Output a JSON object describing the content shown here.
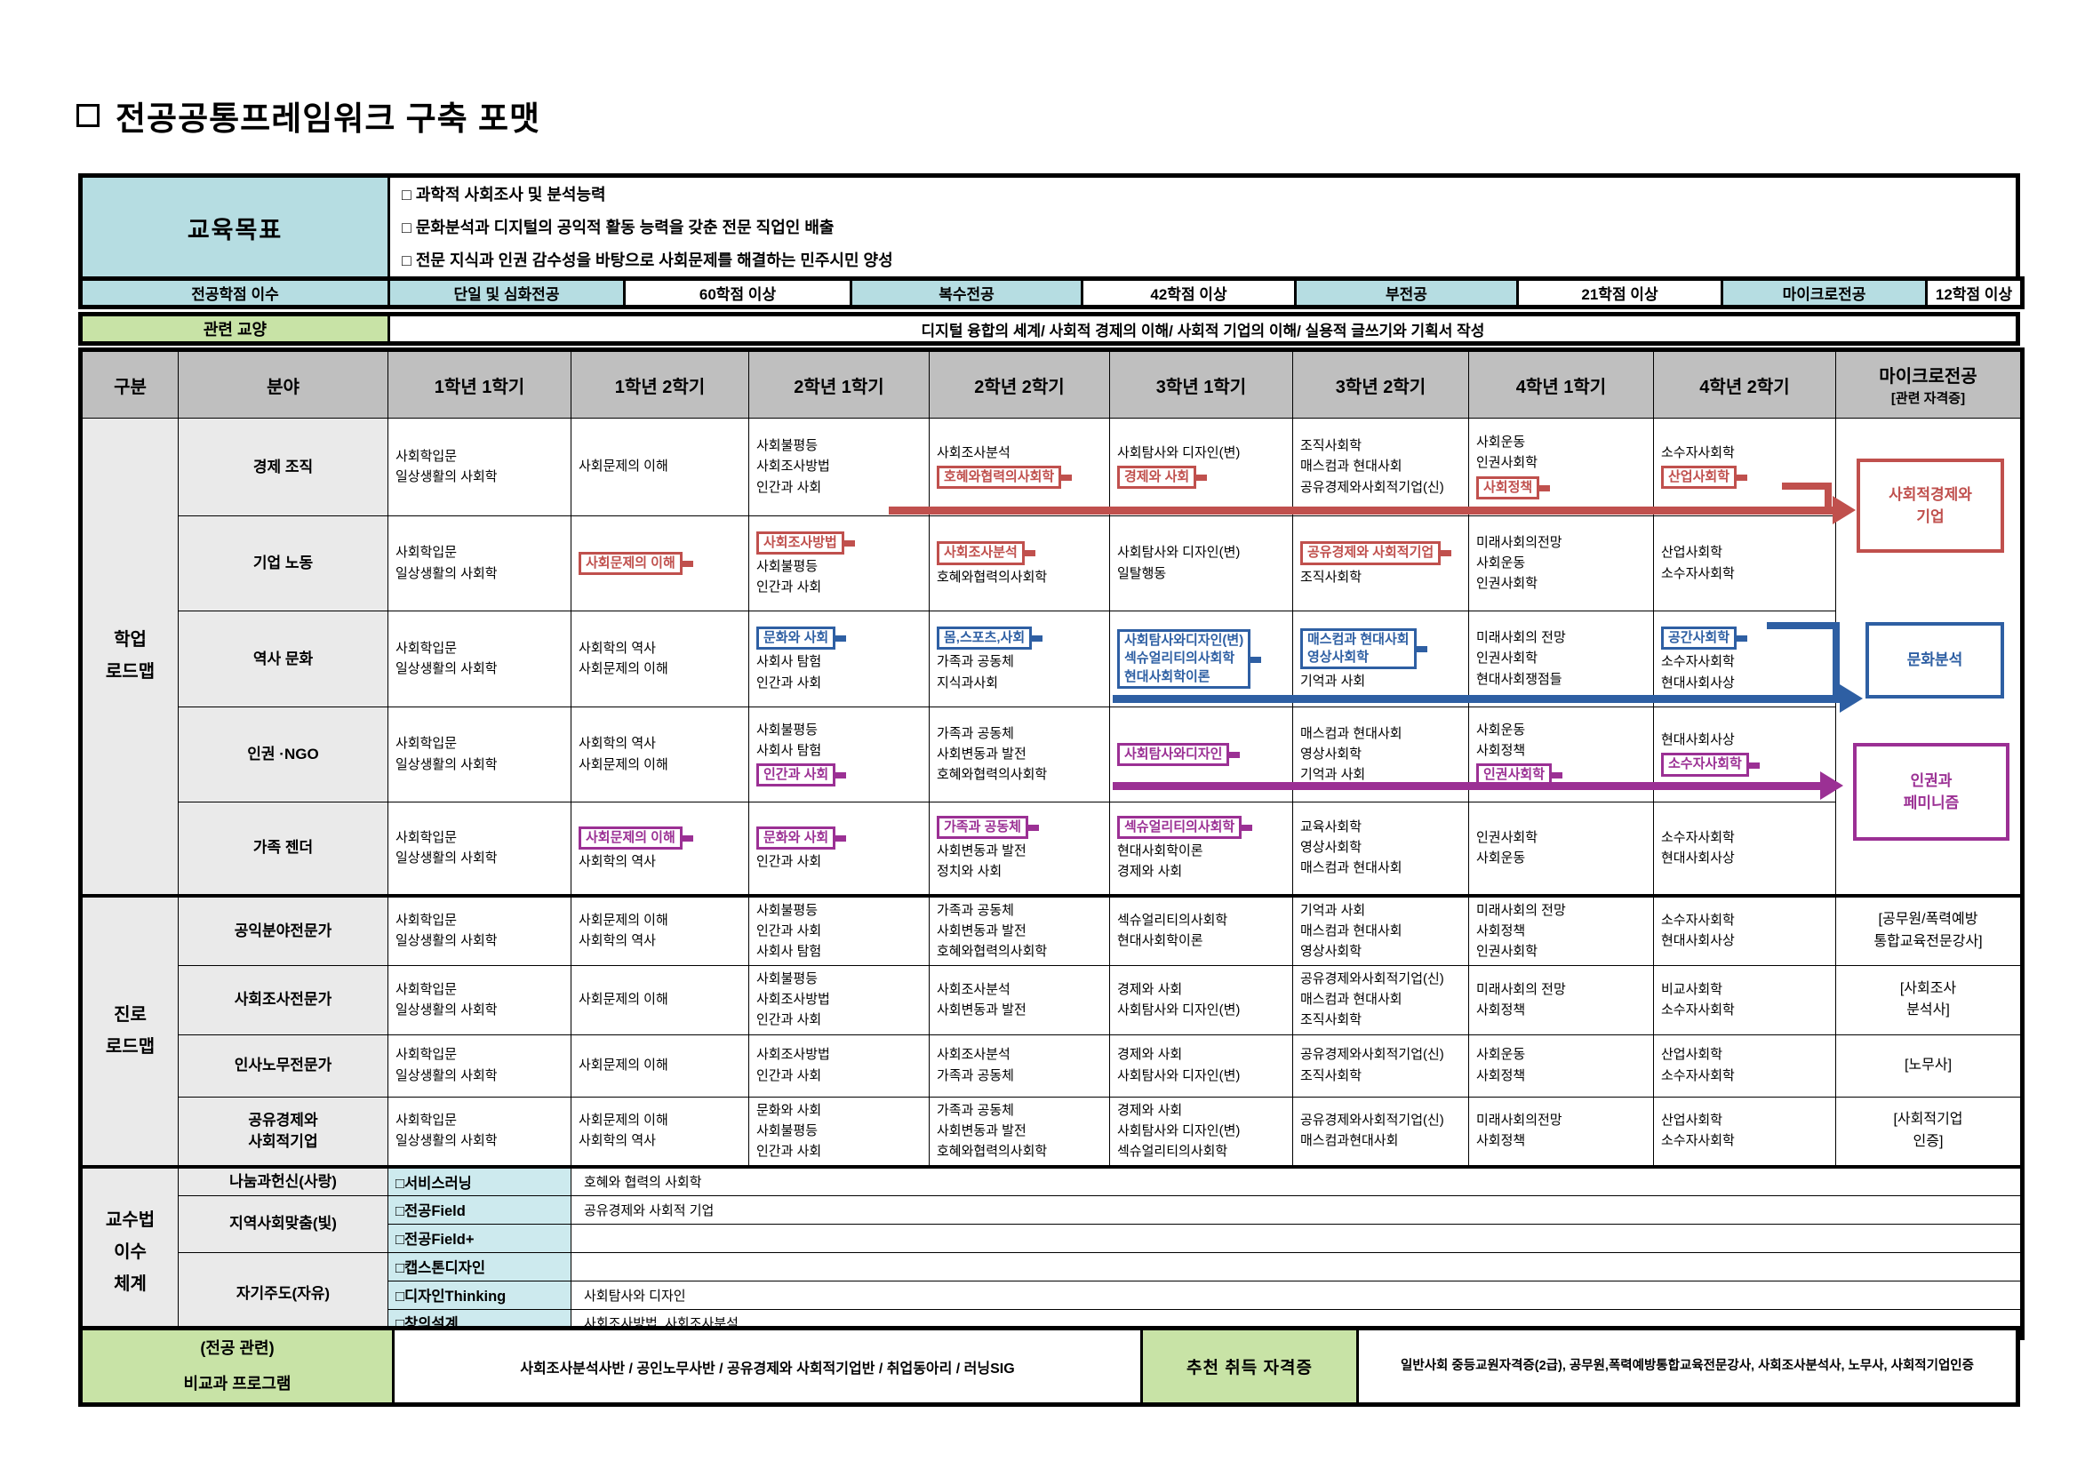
{
  "title": "전공공통프레임워크 구축 포맷",
  "colors": {
    "red": "#C0504D",
    "blue": "#2E5FA3",
    "purple": "#9B3094",
    "cyan": "#B6DDE2",
    "light_cyan": "#CDEAEE",
    "green": "#C8E3A6",
    "header_gray": "#BFBFBF",
    "label_gray": "#EAEAEA"
  },
  "goals": {
    "label": "교육목표",
    "items": [
      "□ 과학적 사회조사 및 분석능력",
      "□ 문화분석과 디지털의 공익적 활동 능력을 갖춘 전문 직업인 배출",
      "□ 전문 지식과 인권 감수성을 바탕으로 사회문제를 해결하는 민주시민 양성"
    ]
  },
  "credits": {
    "label": "전공학점 이수",
    "pairs": [
      {
        "type": "단일 및 심화전공",
        "credit": "60학점 이상"
      },
      {
        "type": "복수전공",
        "credit": "42학점 이상"
      },
      {
        "type": "부전공",
        "credit": "21학점 이상"
      },
      {
        "type": "마이크로전공",
        "credit": "12학점 이상"
      }
    ]
  },
  "liberal_arts": {
    "label": "관련 교양",
    "value": "디지털 융합의 세계/ 사회적 경제의 이해/ 사회적 기업의 이해/ 실용적 글쓰기와 기획서 작성"
  },
  "grid": {
    "headers": [
      "구분",
      "분야",
      "1학년 1학기",
      "1학년 2학기",
      "2학년 1학기",
      "2학년 2학기",
      "3학년 1학기",
      "3학년 2학기",
      "4학년 1학기",
      "4학년 2학기"
    ],
    "micro_header": {
      "line1": "마이크로전공",
      "line2": "[관련 자격증]"
    },
    "academic": {
      "group_label": [
        "학업",
        "로드맵"
      ],
      "rows": [
        {
          "field": "경제 조직",
          "cells": [
            [
              {
                "t": "사회학입문"
              },
              {
                "t": "일상생활의 사회학"
              }
            ],
            [
              {
                "t": "사회문제의 이해"
              }
            ],
            [
              {
                "t": "사회불평등"
              },
              {
                "t": "사회조사방법"
              },
              {
                "t": "인간과 사회"
              }
            ],
            [
              {
                "t": "사회조사분석"
              },
              {
                "t": "호혜와협력의사회학",
                "b": "red"
              }
            ],
            [
              {
                "t": "사회탐사와 디자인(변)"
              },
              {
                "t": "경제와 사회",
                "b": "red"
              }
            ],
            [
              {
                "t": "조직사회학"
              },
              {
                "t": "매스컴과 현대사회"
              },
              {
                "t": "공유경제와사회적기업(신)"
              }
            ],
            [
              {
                "t": "사회운동"
              },
              {
                "t": "인권사회학"
              },
              {
                "t": "사회정책",
                "b": "red"
              }
            ],
            [
              {
                "t": "소수자사회학"
              },
              {
                "t": "산업사회학",
                "b": "red"
              }
            ]
          ]
        },
        {
          "field": "기업 노동",
          "cells": [
            [
              {
                "t": "사회학입문"
              },
              {
                "t": "일상생활의 사회학"
              }
            ],
            [
              {
                "t": "사회문제의 이해",
                "b": "red"
              }
            ],
            [
              {
                "t": "사회조사방법",
                "b": "red"
              },
              {
                "t": "사회불평등"
              },
              {
                "t": "인간과 사회"
              }
            ],
            [
              {
                "t": "사회조사분석",
                "b": "red"
              },
              {
                "t": "호혜와협력의사회학"
              }
            ],
            [
              {
                "t": "사회탐사와 디자인(변)"
              },
              {
                "t": "일탈행동"
              }
            ],
            [
              {
                "t": "공유경제와 사회적기업",
                "b": "red"
              },
              {
                "t": "조직사회학"
              }
            ],
            [
              {
                "t": "미래사회의전망"
              },
              {
                "t": "사회운동"
              },
              {
                "t": "인권사회학"
              }
            ],
            [
              {
                "t": "산업사회학"
              },
              {
                "t": "소수자사회학"
              }
            ]
          ]
        },
        {
          "field": "역사 문화",
          "cells": [
            [
              {
                "t": "사회학입문"
              },
              {
                "t": "일상생활의 사회학"
              }
            ],
            [
              {
                "t": "사회학의 역사"
              },
              {
                "t": "사회문제의 이해"
              }
            ],
            [
              {
                "t": "문화와 사회",
                "b": "blue"
              },
              {
                "t": "사회사 탐험"
              },
              {
                "t": "인간과 사회"
              }
            ],
            [
              {
                "t": "몸,스포츠,사회",
                "b": "blue"
              },
              {
                "t": "가족과 공동체"
              },
              {
                "t": "지식과사회"
              }
            ],
            [
              {
                "t": [
                  "사회탐사와디자인(변)",
                  "섹슈얼리티의사회학",
                  "현대사회학이론"
                ],
                "b": "blue"
              }
            ],
            [
              {
                "t": [
                  "매스컴과 현대사회",
                  "영상사회학"
                ],
                "b": "blue"
              },
              {
                "t": "기억과 사회"
              }
            ],
            [
              {
                "t": "미래사회의 전망"
              },
              {
                "t": "인권사회학"
              },
              {
                "t": "현대사회쟁점들"
              }
            ],
            [
              {
                "t": "공간사회학",
                "b": "blue"
              },
              {
                "t": "소수자사회학"
              },
              {
                "t": "현대사회사상"
              }
            ]
          ]
        },
        {
          "field": "인권 ·NGO",
          "cells": [
            [
              {
                "t": "사회학입문"
              },
              {
                "t": "일상생활의 사회학"
              }
            ],
            [
              {
                "t": "사회학의 역사"
              },
              {
                "t": "사회문제의 이해"
              }
            ],
            [
              {
                "t": "사회불평등"
              },
              {
                "t": "사회사 탐험"
              },
              {
                "t": "인간과 사회",
                "b": "purple"
              }
            ],
            [
              {
                "t": "가족과 공동체"
              },
              {
                "t": "사회변동과 발전"
              },
              {
                "t": "호혜와협력의사회학"
              }
            ],
            [
              {
                "t": "사회탐사와디자인",
                "b": "purple"
              }
            ],
            [
              {
                "t": "매스컴과 현대사회"
              },
              {
                "t": "영상사회학"
              },
              {
                "t": "기억과 사회"
              }
            ],
            [
              {
                "t": "사회운동"
              },
              {
                "t": "사회정책"
              },
              {
                "t": "인권사회학",
                "b": "purple"
              }
            ],
            [
              {
                "t": "현대사회사상"
              },
              {
                "t": "소수자사회학",
                "b": "purple"
              }
            ]
          ]
        },
        {
          "field": "가족 젠더",
          "cells": [
            [
              {
                "t": "사회학입문"
              },
              {
                "t": "일상생활의 사회학"
              }
            ],
            [
              {
                "t": "사회문제의 이해",
                "b": "purple"
              },
              {
                "t": "사회학의 역사"
              }
            ],
            [
              {
                "t": "문화와 사회",
                "b": "purple"
              },
              {
                "t": "인간과 사회"
              }
            ],
            [
              {
                "t": "가족과 공동체",
                "b": "purple"
              },
              {
                "t": "사회변동과 발전"
              },
              {
                "t": "정치와 사회"
              }
            ],
            [
              {
                "t": "섹슈얼리티의사회학",
                "b": "purple"
              },
              {
                "t": "현대사회학이론"
              },
              {
                "t": "경제와 사회"
              }
            ],
            [
              {
                "t": "교육사회학"
              },
              {
                "t": "영상사회학"
              },
              {
                "t": "매스컴과 현대사회"
              }
            ],
            [
              {
                "t": "인권사회학"
              },
              {
                "t": "사회운동"
              }
            ],
            [
              {
                "t": "소수자사회학"
              },
              {
                "t": "현대사회사상"
              }
            ]
          ]
        }
      ]
    },
    "career": {
      "group_label": [
        "진로",
        "로드맵"
      ],
      "rows": [
        {
          "field": "공익분야전문가",
          "micro": [
            "[공무원/폭력예방",
            "통합교육전문강사]"
          ],
          "cells": [
            [
              {
                "t": "사회학입문"
              },
              {
                "t": "일상생활의 사회학"
              }
            ],
            [
              {
                "t": "사회문제의 이해"
              },
              {
                "t": "사회학의 역사"
              }
            ],
            [
              {
                "t": "사회불평등"
              },
              {
                "t": "인간과 사회"
              },
              {
                "t": "사회사 탐험"
              }
            ],
            [
              {
                "t": "가족과 공동체"
              },
              {
                "t": "사회변동과 발전"
              },
              {
                "t": "호혜와협력의사회학"
              }
            ],
            [
              {
                "t": "섹슈얼리티의사회학"
              },
              {
                "t": "현대사회학이론"
              }
            ],
            [
              {
                "t": "기억과 사회"
              },
              {
                "t": "매스컴과 현대사회"
              },
              {
                "t": "영상사회학"
              }
            ],
            [
              {
                "t": "미래사회의 전망"
              },
              {
                "t": "사회정책"
              },
              {
                "t": "인권사회학"
              }
            ],
            [
              {
                "t": "소수자사회학"
              },
              {
                "t": "현대사회사상"
              }
            ]
          ]
        },
        {
          "field": "사회조사전문가",
          "micro": [
            "[사회조사",
            "분석사]"
          ],
          "cells": [
            [
              {
                "t": "사회학입문"
              },
              {
                "t": "일상생활의 사회학"
              }
            ],
            [
              {
                "t": "사회문제의 이해"
              }
            ],
            [
              {
                "t": "사회불평등"
              },
              {
                "t": "사회조사방법"
              },
              {
                "t": "인간과 사회"
              }
            ],
            [
              {
                "t": "사회조사분석"
              },
              {
                "t": "사회변동과 발전"
              }
            ],
            [
              {
                "t": "경제와 사회"
              },
              {
                "t": "사회탐사와 디자인(변)"
              }
            ],
            [
              {
                "t": "공유경제와사회적기업(신)"
              },
              {
                "t": "매스컴과 현대사회"
              },
              {
                "t": "조직사회학"
              }
            ],
            [
              {
                "t": "미래사회의 전망"
              },
              {
                "t": "사회정책"
              }
            ],
            [
              {
                "t": "비교사회학"
              },
              {
                "t": "소수자사회학"
              }
            ]
          ]
        },
        {
          "field": "인사노무전문가",
          "micro": [
            "[노무사]"
          ],
          "cells": [
            [
              {
                "t": "사회학입문"
              },
              {
                "t": "일상생활의 사회학"
              }
            ],
            [
              {
                "t": "사회문제의 이해"
              }
            ],
            [
              {
                "t": "사회조사방법"
              },
              {
                "t": "인간과 사회"
              }
            ],
            [
              {
                "t": "사회조사분석"
              },
              {
                "t": "가족과 공동체"
              }
            ],
            [
              {
                "t": "경제와 사회"
              },
              {
                "t": "사회탐사와 디자인(변)"
              }
            ],
            [
              {
                "t": "공유경제와사회적기업(신)"
              },
              {
                "t": "조직사회학"
              }
            ],
            [
              {
                "t": "사회운동"
              },
              {
                "t": "사회정책"
              }
            ],
            [
              {
                "t": "산업사회학"
              },
              {
                "t": "소수자사회학"
              }
            ]
          ]
        },
        {
          "field": [
            "공유경제와",
            "사회적기업"
          ],
          "micro": [
            "[사회적기업",
            "인증]"
          ],
          "cells": [
            [
              {
                "t": "사회학입문"
              },
              {
                "t": "일상생활의 사회학"
              }
            ],
            [
              {
                "t": "사회문제의 이해"
              },
              {
                "t": "사회학의 역사"
              }
            ],
            [
              {
                "t": "문화와 사회"
              },
              {
                "t": "사회불평등"
              },
              {
                "t": "인간과 사회"
              }
            ],
            [
              {
                "t": "가족과 공동체"
              },
              {
                "t": "사회변동과 발전"
              },
              {
                "t": "호혜와협력의사회학"
              }
            ],
            [
              {
                "t": "경제와 사회"
              },
              {
                "t": "사회탐사와 디자인(변)"
              },
              {
                "t": "섹슈얼리티의사회학"
              }
            ],
            [
              {
                "t": "공유경제와사회적기업(신)"
              },
              {
                "t": "매스컴과현대사회"
              }
            ],
            [
              {
                "t": "미래사회의전망"
              },
              {
                "t": "사회정책"
              }
            ],
            [
              {
                "t": "산업사회학"
              },
              {
                "t": "소수자사회학"
              }
            ]
          ]
        }
      ]
    },
    "teaching": {
      "group_label": [
        "교수법",
        "이수",
        "체계"
      ],
      "fields": [
        {
          "name": "나눔과헌신(사랑)",
          "methods": [
            {
              "label": "□서비스러닝",
              "course": "호혜와 협력의 사회학"
            }
          ]
        },
        {
          "name": "지역사회맞춤(빛)",
          "methods": [
            {
              "label": "□전공Field",
              "course": "공유경제와 사회적 기업"
            },
            {
              "label": "□전공Field+",
              "course": ""
            }
          ]
        },
        {
          "name": "자기주도(자유)",
          "methods": [
            {
              "label": "□캡스톤디자인",
              "course": ""
            },
            {
              "label": "□디자인Thinking",
              "course": "사회탐사와 디자인"
            },
            {
              "label": "□창의설계",
              "course": "사회조사방법, 사회조사분석"
            }
          ]
        }
      ]
    }
  },
  "micro_boxes": [
    {
      "lines": [
        "사회적경제와",
        "기업"
      ],
      "color": "red"
    },
    {
      "lines": [
        "문화분석"
      ],
      "color": "blue"
    },
    {
      "lines": [
        "인권과",
        "페미니즘"
      ],
      "color": "purple"
    }
  ],
  "bottom": {
    "left_label": [
      "(전공 관련)",
      "비교과 프로그램"
    ],
    "programs": "사회조사분석사반 / 공인노무사반 / 공유경제와 사회적기업반 / 취업동아리 / 러닝SIG",
    "recommend_label": "추천 취득 자격증",
    "certs": "일반사회 중등교원자격증(2급), 공무원,폭력예방통합교육전문강사, 사회조사분석사, 노무사, 사회적기업인증"
  }
}
